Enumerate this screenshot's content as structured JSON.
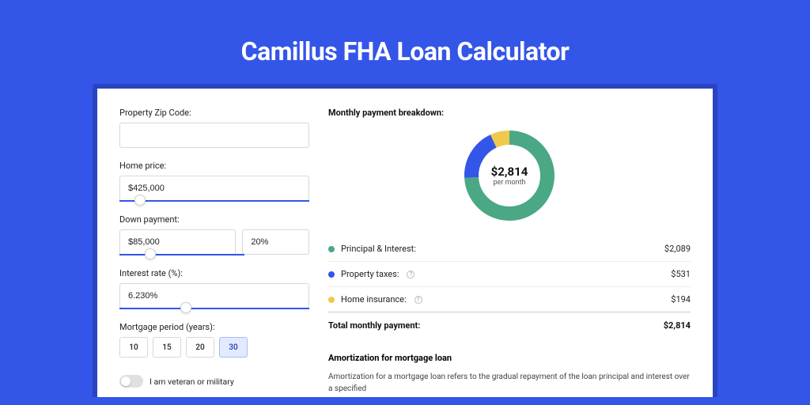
{
  "page_title": "Camillus FHA Loan Calculator",
  "colors": {
    "page_bg": "#3355e8",
    "card_shadow": "#2a44c0",
    "card_bg": "#ffffff",
    "text_primary": "#222222",
    "accent": "#3355e8"
  },
  "left": {
    "zip": {
      "label": "Property Zip Code:",
      "value": ""
    },
    "home_price": {
      "label": "Home price:",
      "value": "$425,000",
      "slider_pos_pct": 8
    },
    "down_payment": {
      "label": "Down payment:",
      "amount": "$85,000",
      "percent": "20%",
      "slider_pos_pct": 20
    },
    "interest_rate": {
      "label": "Interest rate (%):",
      "value": "6.230%",
      "slider_pos_pct": 32
    },
    "period": {
      "label": "Mortgage period (years):",
      "options": [
        "10",
        "15",
        "20",
        "30"
      ],
      "selected": "30"
    },
    "veteran": {
      "label": "I am veteran or military",
      "checked": false
    }
  },
  "right": {
    "breakdown_title": "Monthly payment breakdown:",
    "donut": {
      "amount": "$2,814",
      "sub": "per month",
      "segments": [
        {
          "label": "Principal & Interest",
          "value": 2089,
          "color": "#4aa884",
          "pct": 74.2
        },
        {
          "label": "Property taxes",
          "value": 531,
          "color": "#3355e8",
          "pct": 18.9
        },
        {
          "label": "Home insurance",
          "value": 194,
          "color": "#f0c94a",
          "pct": 6.9
        }
      ],
      "stroke_width": 18
    },
    "legend": [
      {
        "dot": "#4aa884",
        "label": "Principal & Interest:",
        "info": false,
        "value": "$2,089"
      },
      {
        "dot": "#3355e8",
        "label": "Property taxes:",
        "info": true,
        "value": "$531"
      },
      {
        "dot": "#f0c94a",
        "label": "Home insurance:",
        "info": true,
        "value": "$194"
      }
    ],
    "total": {
      "label": "Total monthly payment:",
      "value": "$2,814"
    },
    "amort": {
      "title": "Amortization for mortgage loan",
      "text": "Amortization for a mortgage loan refers to the gradual repayment of the loan principal and interest over a specified"
    }
  }
}
